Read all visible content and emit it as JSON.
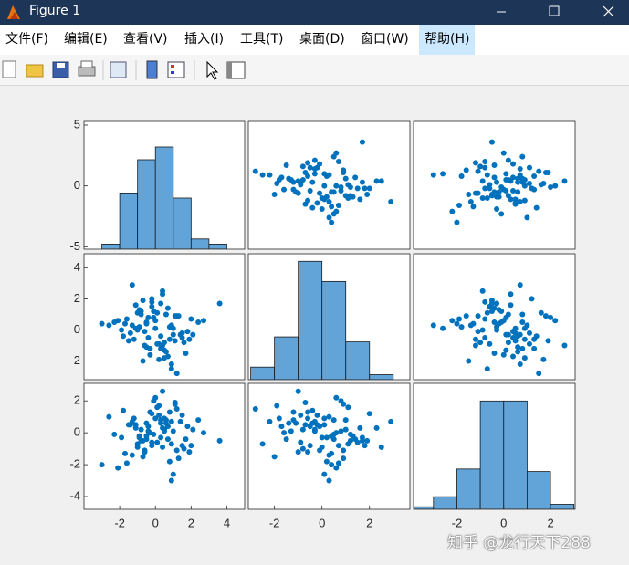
{
  "window": {
    "title": "Figure 1",
    "menus": [
      "文件(F)",
      "编辑(E)",
      "查看(V)",
      "插入(I)",
      "工具(T)",
      "桌面(D)",
      "窗口(W)",
      "帮助(H)"
    ],
    "watermark": "知乎 @龙行天下288"
  },
  "chart_data": {
    "type": "scatter-matrix",
    "color": "#0072bd",
    "hist_color": "#62a3d8",
    "variables": [
      [
        -0.5,
        0.3,
        1.2,
        -1.1,
        0.8,
        -0.2,
        2.1,
        -1.6,
        0.5,
        -0.9,
        0.1,
        1.5,
        -0.4,
        0.9,
        -1.3,
        0.2,
        -0.7,
        1.8,
        -2.1,
        0.6,
        -0.1,
        1.1,
        -1.0,
        0.4,
        -0.6,
        2.4,
        -1.8,
        0.7,
        -0.3,
        1.3,
        -1.4,
        0.0,
        0.9,
        -0.8,
        1.6,
        -2.6,
        0.3,
        -0.5,
        1.0,
        -1.2,
        3.6,
        -0.2,
        0.5,
        -1.7,
        1.4,
        -0.9,
        0.2,
        2.0,
        -0.4,
        0.8,
        -1.1,
        0.1,
        1.2,
        -2.3,
        0.6,
        -0.6,
        1.7,
        -0.1,
        0.4,
        -1.5,
        0.9,
        -0.3,
        2.7,
        -1.0,
        0.3,
        -0.7,
        1.1,
        -1.9,
        0.5,
        -0.2,
        1.5,
        -3.0,
        0.7,
        -0.8,
        0.0,
        1.9,
        -1.3,
        0.4,
        -0.5,
        1.0
      ],
      [
        0.4,
        -1.2,
        0.9,
        0.1,
        -0.6,
        1.5,
        -0.3,
        0.7,
        -1.8,
        0.2,
        1.1,
        -0.5,
        0.8,
        -2.2,
        0.3,
        -0.9,
        1.9,
        -0.1,
        0.6,
        -1.4,
        1.2,
        -0.7,
        0.0,
        2.3,
        -1.0,
        0.5,
        -0.4,
        1.4,
        -1.6,
        0.9,
        -0.2,
        0.6,
        -2.5,
        1.0,
        -0.8,
        0.3,
        1.7,
        -1.1,
        0.1,
        -0.6,
        1.7,
        2.0,
        -1.3,
        0.4,
        -0.3,
        1.3,
        -1.9,
        0.7,
        -0.5,
        0.2,
        1.6,
        -0.9,
        -2.8,
        0.5,
        1.0,
        -0.1,
        -1.5,
        0.8,
        2.5,
        -0.7,
        0.3,
        -1.2,
        0.6,
        1.1,
        -0.4,
        -2.0,
        0.9,
        0.0,
        -0.8,
        1.8,
        -0.2,
        0.4,
        -1.7,
        1.2,
        0.1,
        -0.6,
        2.9,
        -1.0,
        0.5,
        -0.3
      ],
      [
        -0.2,
        0.8,
        -1.1,
        0.5,
        1.3,
        -0.6,
        0.2,
        -1.9,
        0.9,
        -0.3,
        1.6,
        -0.8,
        0.1,
        0.7,
        -1.4,
        1.1,
        -0.5,
        0.4,
        -2.2,
        0.6,
        -0.1,
        1.9,
        -0.9,
        0.3,
        -1.2,
        0.8,
        1.4,
        -0.4,
        0.0,
        -1.6,
        0.5,
        2.2,
        -0.7,
        0.2,
        -1.0,
        1.0,
        -0.3,
        0.6,
        -2.6,
        0.9,
        -0.5,
        1.2,
        0.1,
        -1.3,
        0.7,
        -0.2,
        1.7,
        -0.8,
        0.4,
        -1.8,
        0.3,
        -0.6,
        1.5,
        -0.1,
        0.8,
        -1.1,
        -0.4,
        2.0,
        -0.9,
        0.5,
        -3.0,
        1.3,
        0.0,
        -0.7,
        0.6,
        -1.5,
        1.8,
        -0.3,
        0.2,
        -0.8,
        1.1,
        -2.0,
        0.4,
        -0.5,
        0.9,
        -1.2,
        0.7,
        2.6,
        -0.4,
        0.1
      ]
    ],
    "histograms": [
      {
        "bins": [
          -3,
          -2,
          -1,
          0,
          1,
          2,
          3,
          4
        ],
        "counts": [
          2,
          22,
          35,
          40,
          20,
          4,
          2
        ],
        "ylim": [
          0,
          50
        ]
      },
      {
        "bins": [
          -3,
          -2,
          -1,
          0,
          1,
          2,
          3
        ],
        "counts": [
          5,
          17,
          47,
          39,
          15,
          2
        ],
        "ylim": [
          0,
          50
        ]
      },
      {
        "bins": [
          -4,
          -3,
          -2,
          -1,
          0,
          1,
          2,
          3
        ],
        "counts": [
          1,
          5,
          16,
          43,
          43,
          15,
          2
        ],
        "ylim": [
          0,
          50
        ]
      }
    ],
    "rows": [
      {
        "ylim": [
          -5.2,
          5.3
        ],
        "yticks": [
          -5,
          0,
          5
        ]
      },
      {
        "ylim": [
          -3.2,
          4.9
        ],
        "yticks": [
          -2,
          0,
          2,
          4
        ]
      },
      {
        "ylim": [
          -4.8,
          3.1
        ],
        "yticks": [
          -4,
          -2,
          0,
          2
        ]
      }
    ],
    "columns": [
      {
        "xlim": [
          -4,
          5
        ],
        "xticks": [
          -2,
          0,
          2,
          4
        ]
      },
      {
        "xlim": [
          -3.1,
          3.7
        ],
        "xticks": [
          -2,
          0,
          2
        ]
      },
      {
        "xlim": [
          -3.85,
          3.05
        ],
        "xticks": [
          -2,
          0,
          2
        ]
      }
    ]
  }
}
